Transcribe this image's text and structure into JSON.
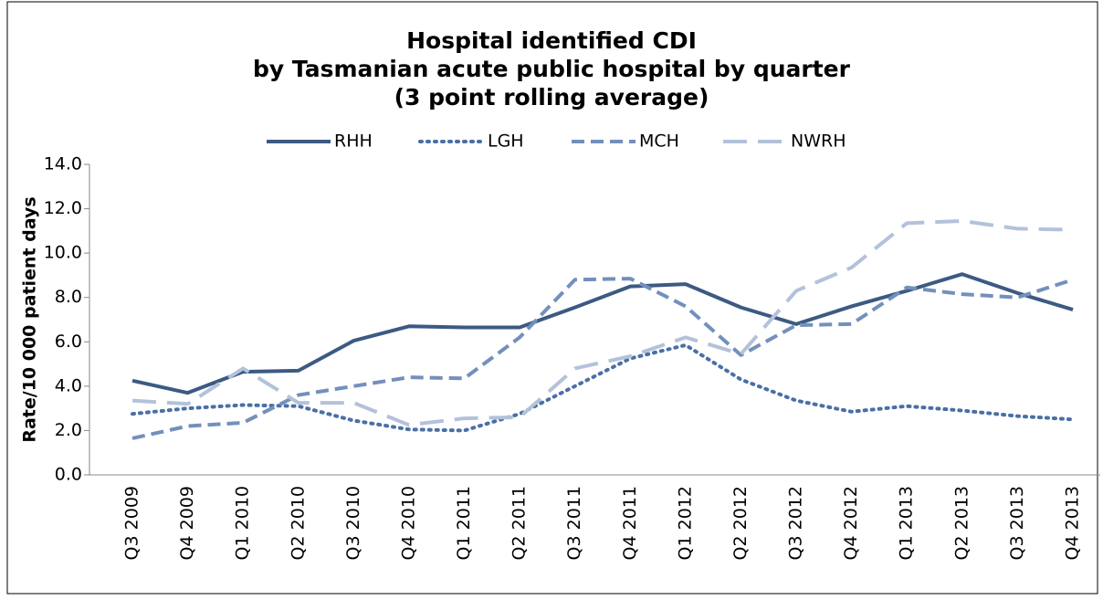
{
  "chart_data": {
    "type": "line",
    "title": [
      "Hospital identified CDI",
      "by Tasmanian acute public hospital by quarter",
      "(3 point rolling average)"
    ],
    "y_label": "Rate/10 000 patient days",
    "categories": [
      "Q3 2009",
      "Q4 2009",
      "Q1 2010",
      "Q2 2010",
      "Q3 2010",
      "Q4 2010",
      "Q1 2011",
      "Q2 2011",
      "Q3 2011",
      "Q4 2011",
      "Q1 2012",
      "Q2 2012",
      "Q3 2012",
      "Q4 2012",
      "Q1 2013",
      "Q2 2013",
      "Q3 2013",
      "Q4 2013"
    ],
    "series": [
      {
        "name": "RHH",
        "color": "#3c5a82",
        "dash": "solid",
        "values": [
          4.25,
          3.7,
          4.65,
          4.7,
          6.05,
          6.7,
          6.65,
          6.65,
          7.55,
          8.5,
          8.6,
          7.55,
          6.8,
          7.6,
          8.3,
          9.05,
          8.2,
          7.45
        ]
      },
      {
        "name": "LGH",
        "color": "#4a6fa5",
        "dash": "dotted",
        "values": [
          2.75,
          3.0,
          3.15,
          3.1,
          2.45,
          2.05,
          2.0,
          2.75,
          4.0,
          5.25,
          5.85,
          4.3,
          3.35,
          2.85,
          3.1,
          2.9,
          2.65,
          2.5
        ]
      },
      {
        "name": "MCH",
        "color": "#7390bc",
        "dash": "dashed",
        "values": [
          1.65,
          2.2,
          2.35,
          3.6,
          4.0,
          4.4,
          4.35,
          6.2,
          8.8,
          8.85,
          7.6,
          5.4,
          6.75,
          6.8,
          8.45,
          8.15,
          8.0,
          8.8
        ]
      },
      {
        "name": "NWRH",
        "color": "#b3c2da",
        "dash": "longdash",
        "values": [
          3.35,
          3.2,
          4.8,
          3.25,
          3.25,
          2.25,
          2.55,
          2.6,
          4.8,
          5.35,
          6.2,
          5.45,
          8.3,
          9.35,
          11.35,
          11.45,
          11.1,
          11.05
        ]
      }
    ],
    "ylim": [
      0,
      14
    ],
    "yticks": [
      {
        "value": 0,
        "label": "0.0"
      },
      {
        "value": 2,
        "label": "2.0"
      },
      {
        "value": 4,
        "label": "4.0"
      },
      {
        "value": 6,
        "label": "6.0"
      },
      {
        "value": 8,
        "label": "8.0"
      },
      {
        "value": 10,
        "label": "10.0"
      },
      {
        "value": 12,
        "label": "12.0"
      },
      {
        "value": 14,
        "label": "14.0"
      }
    ],
    "legend": "top"
  }
}
